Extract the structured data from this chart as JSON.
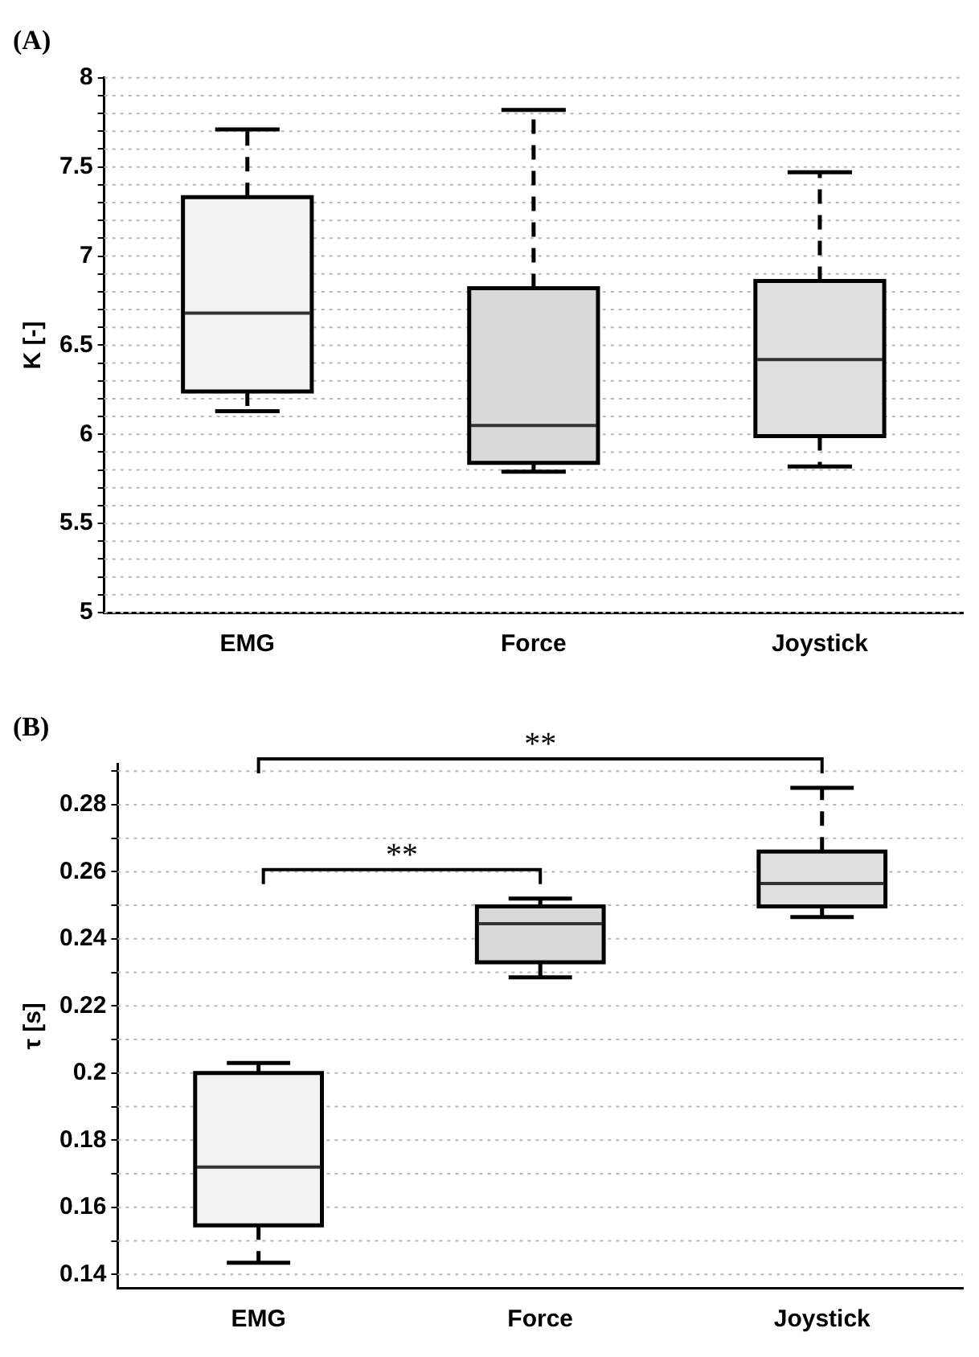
{
  "chart_data": [
    {
      "type": "box",
      "title": "(A)",
      "ylabel": "K [-]",
      "categories": [
        "EMG",
        "Force",
        "Joystick"
      ],
      "colors": [
        "#f2f2f2",
        "#d9d9d9",
        "#e0e0e0"
      ],
      "boxes": [
        {
          "low": 6.13,
          "q1": 6.24,
          "median": 6.68,
          "q3": 7.33,
          "high": 7.71
        },
        {
          "low": 5.79,
          "q1": 5.84,
          "median": 6.05,
          "q3": 6.82,
          "high": 7.82
        },
        {
          "low": 5.82,
          "q1": 5.99,
          "median": 6.42,
          "q3": 6.86,
          "high": 7.47
        }
      ],
      "ylim": [
        5,
        8
      ],
      "yticks": [
        5,
        {
          "value": 5.1,
          "label": null
        },
        {
          "value": 5.2,
          "label": null
        },
        {
          "value": 5.3,
          "label": null
        },
        {
          "value": 5.4,
          "label": null
        },
        5.5,
        {
          "value": 5.6,
          "label": null
        },
        {
          "value": 5.7,
          "label": null
        },
        {
          "value": 5.8,
          "label": null
        },
        {
          "value": 5.9,
          "label": null
        },
        6,
        {
          "value": 6.1,
          "label": null
        },
        {
          "value": 6.2,
          "label": null
        },
        {
          "value": 6.3,
          "label": null
        },
        {
          "value": 6.4,
          "label": null
        },
        6.5,
        {
          "value": 6.6,
          "label": null
        },
        {
          "value": 6.7,
          "label": null
        },
        {
          "value": 6.8,
          "label": null
        },
        {
          "value": 6.9,
          "label": null
        },
        7,
        {
          "value": 7.1,
          "label": null
        },
        {
          "value": 7.2,
          "label": null
        },
        {
          "value": 7.3,
          "label": null
        },
        {
          "value": 7.4,
          "label": null
        },
        7.5,
        {
          "value": 7.6,
          "label": null
        },
        {
          "value": 7.7,
          "label": null
        },
        {
          "value": 7.8,
          "label": null
        },
        {
          "value": 7.9,
          "label": null
        },
        8
      ],
      "grid": "y"
    },
    {
      "type": "box",
      "title": "(B)",
      "ylabel": "τ [s]",
      "categories": [
        "EMG",
        "Force",
        "Joystick"
      ],
      "colors": [
        "#f2f2f2",
        "#d9d9d9",
        "#e0e0e0"
      ],
      "boxes": [
        {
          "low": 0.1435,
          "q1": 0.1546,
          "median": 0.172,
          "q3": 0.2,
          "high": 0.203
        },
        {
          "low": 0.2285,
          "q1": 0.233,
          "median": 0.2445,
          "q3": 0.2497,
          "high": 0.252
        },
        {
          "low": 0.2465,
          "q1": 0.2497,
          "median": 0.2565,
          "q3": 0.266,
          "high": 0.285
        }
      ],
      "ylim": [
        0.136,
        0.292
      ],
      "yticks": [
        0.14,
        {
          "value": 0.15,
          "label": null
        },
        0.16,
        {
          "value": 0.17,
          "label": null
        },
        0.18,
        {
          "value": 0.19,
          "label": null
        },
        {
          "value": 0.2,
          "label": "0.2"
        },
        {
          "value": 0.21,
          "label": null
        },
        0.22,
        {
          "value": 0.23,
          "label": null
        },
        0.24,
        {
          "value": 0.25,
          "label": null
        },
        0.26,
        {
          "value": 0.27,
          "label": null
        },
        0.28,
        {
          "value": 0.29,
          "label": null
        }
      ],
      "grid": "y",
      "annotations": [
        "**",
        "**"
      ]
    }
  ]
}
